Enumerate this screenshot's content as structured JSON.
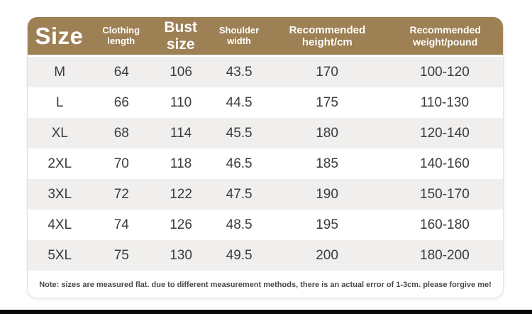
{
  "page": {
    "background": "#ffffff",
    "bottom_bar_color": "#0a0a0a"
  },
  "size_chart": {
    "colors": {
      "header_bg": "#9d8054",
      "header_text": "#ffffff",
      "stripe": "#f0efee",
      "row_text": "#3c3c3c",
      "border": "#e3e0dd",
      "note_text": "#4a4a4a"
    },
    "header": {
      "size": "Size",
      "clothing_length": "Clothing length",
      "bust": "Bust size",
      "shoulder": "Shoulder width",
      "height": "Recommended height/cm",
      "weight": "Recommended weight/pound"
    },
    "rows": [
      {
        "size": "M",
        "clothing_length": "64",
        "bust": "106",
        "shoulder": "43.5",
        "height": "170",
        "weight": "100-120"
      },
      {
        "size": "L",
        "clothing_length": "66",
        "bust": "110",
        "shoulder": "44.5",
        "height": "175",
        "weight": "110-130"
      },
      {
        "size": "XL",
        "clothing_length": "68",
        "bust": "114",
        "shoulder": "45.5",
        "height": "180",
        "weight": "120-140"
      },
      {
        "size": "2XL",
        "clothing_length": "70",
        "bust": "118",
        "shoulder": "46.5",
        "height": "185",
        "weight": "140-160"
      },
      {
        "size": "3XL",
        "clothing_length": "72",
        "bust": "122",
        "shoulder": "47.5",
        "height": "190",
        "weight": "150-170"
      },
      {
        "size": "4XL",
        "clothing_length": "74",
        "bust": "126",
        "shoulder": "48.5",
        "height": "195",
        "weight": "160-180"
      },
      {
        "size": "5XL",
        "clothing_length": "75",
        "bust": "130",
        "shoulder": "49.5",
        "height": "200",
        "weight": "180-200"
      }
    ],
    "note": "Note: sizes are measured flat. due to different measurement methods, there is an actual error of 1-3cm. please forgive me!"
  }
}
